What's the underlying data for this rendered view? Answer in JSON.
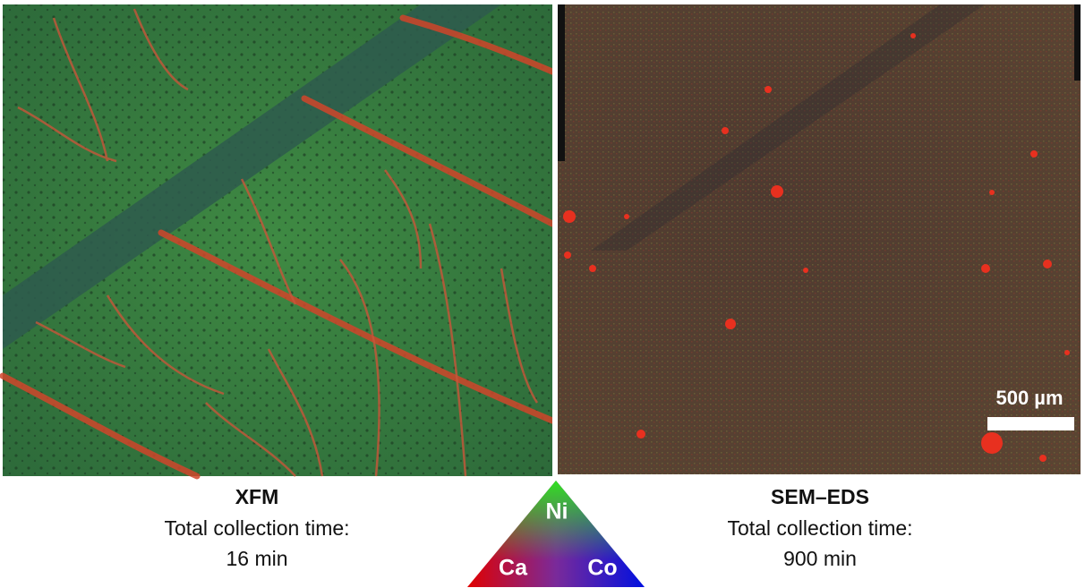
{
  "panels": [
    {
      "title": "XFM",
      "caption": [
        "Total collection time:",
        "16 min"
      ]
    },
    {
      "title": "SEM–EDS",
      "caption": [
        "Total collection time:",
        "900 min"
      ]
    }
  ],
  "scale_bar": {
    "label": "500 µm"
  },
  "legend": {
    "top": "Ni",
    "left": "Ca",
    "right": "Co"
  }
}
